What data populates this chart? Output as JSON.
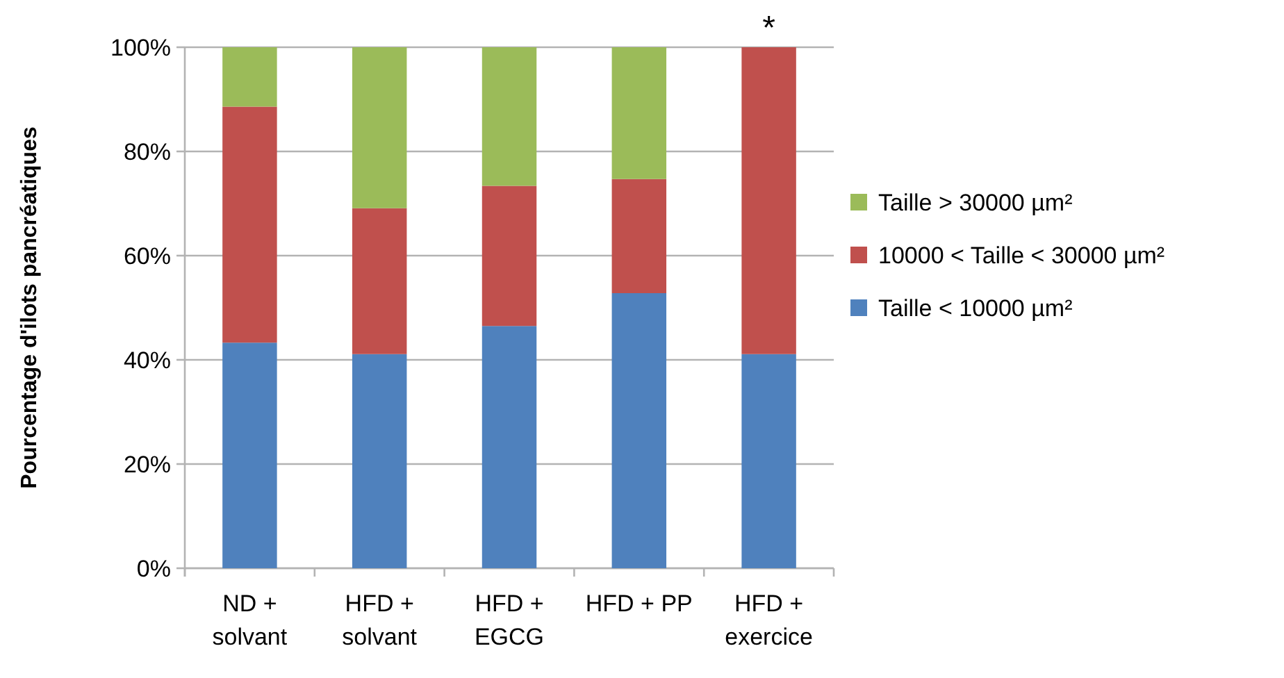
{
  "chart_data": {
    "type": "bar",
    "stacked": true,
    "ylabel": "Pourcentage d'ilots pancréatiques",
    "categories": [
      "ND + solvant",
      "HFD + solvant",
      "HFD + EGCG",
      "HFD + PP",
      "HFD + exercice"
    ],
    "series": [
      {
        "name": "Taille < 10000 µm²",
        "color": "#4f81bd",
        "values": [
          43.3,
          41.1,
          46.5,
          52.8,
          41.1
        ]
      },
      {
        "name": "10000 < Taille < 30000 µm²",
        "color": "#c0504d",
        "values": [
          45.3,
          28.0,
          26.9,
          21.9,
          58.9
        ]
      },
      {
        "name": "Taille > 30000 µm²",
        "color": "#9bbb59",
        "values": [
          11.4,
          30.9,
          26.6,
          25.3,
          0
        ]
      }
    ],
    "ylim": [
      0,
      100
    ],
    "yticks": [
      {
        "value": 0,
        "label": "0%"
      },
      {
        "value": 20,
        "label": "20%"
      },
      {
        "value": 40,
        "label": "40%"
      },
      {
        "value": 60,
        "label": "60%"
      },
      {
        "value": 80,
        "label": "80%"
      },
      {
        "value": 100,
        "label": "100%"
      }
    ],
    "grid": "y",
    "legend": "right",
    "annotations": [
      {
        "text": "*",
        "x": "HFD + exercice",
        "y": 100
      }
    ]
  }
}
